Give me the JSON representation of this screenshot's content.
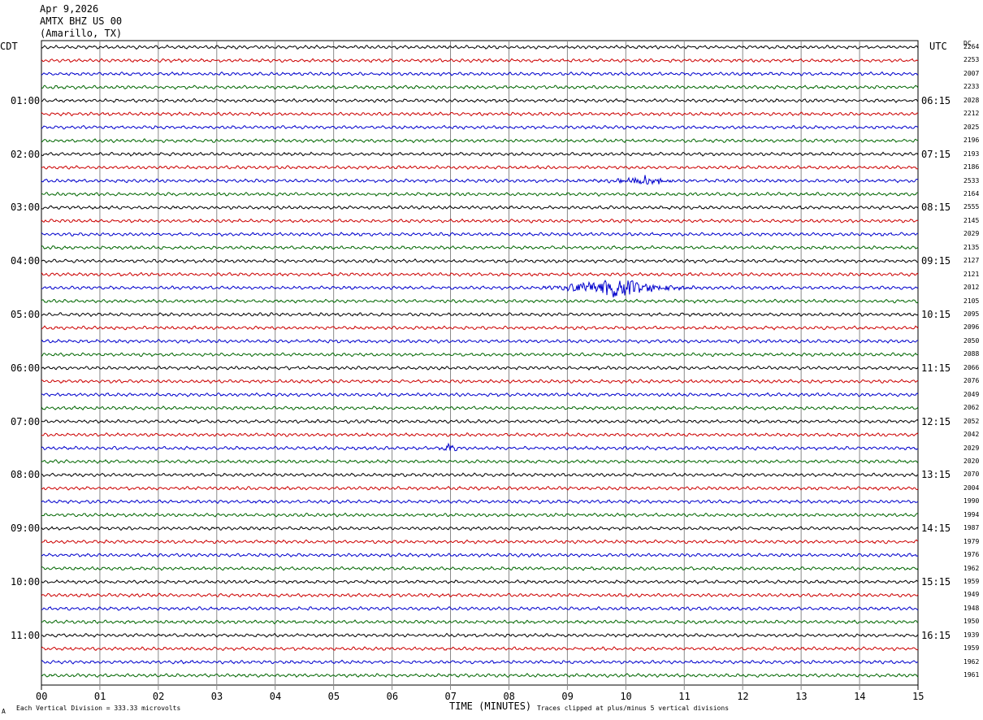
{
  "header": {
    "date": "Apr 9,2026",
    "station": "AMTX BHZ US 00",
    "location": "(Amarillo, TX)"
  },
  "left_zone_label": "CDT",
  "right_zone_label": "UTC",
  "dc_label": "DC",
  "footer": {
    "scale_note": "Each Vertical Division =  333.33 microvolts",
    "xlabel": "TIME (MINUTES)",
    "clip_note": "Traces clipped at plus/minus 5 vertical divisions",
    "corner_mark": "A"
  },
  "chart_data": {
    "type": "line",
    "title": "AMTX BHZ US 00 (Amarillo, TX) Apr 9,2026",
    "xlabel": "TIME (MINUTES)",
    "xlim": [
      0,
      15
    ],
    "x_ticks": [
      "00",
      "01",
      "02",
      "03",
      "04",
      "05",
      "06",
      "07",
      "08",
      "09",
      "10",
      "11",
      "12",
      "13",
      "14",
      "15"
    ],
    "line_colors": [
      "#000000",
      "#cc0000",
      "#0000cc",
      "#006600"
    ],
    "left_hour_labels": [
      "01:00",
      "02:00",
      "03:00",
      "04:00",
      "05:00",
      "06:00",
      "07:00",
      "08:00",
      "09:00",
      "10:00",
      "11:00"
    ],
    "right_hour_labels": [
      "06:15",
      "07:15",
      "08:15",
      "09:15",
      "10:15",
      "11:15",
      "12:15",
      "13:15",
      "14:15",
      "15:15",
      "16:15"
    ],
    "dc_offsets": [
      "2264",
      "2253",
      "2007",
      "2233",
      "2028",
      "2212",
      "2025",
      "2196",
      "2193",
      "2186",
      "2533",
      "2164",
      "2555",
      "2145",
      "2029",
      "2135",
      "2127",
      "2121",
      "2012",
      "2105",
      "2095",
      "2096",
      "2050",
      "2088",
      "2066",
      "2076",
      "2049",
      "2062",
      "2052",
      "2042",
      "2029",
      "2020",
      "2070",
      "2004",
      "1990",
      "1994",
      "1987",
      "1979",
      "1976",
      "1962",
      "1959",
      "1949",
      "1948",
      "1950",
      "1939",
      "1959",
      "1962",
      "1961"
    ],
    "events": [
      {
        "trace": 18,
        "minute_start": 8.6,
        "minute_end": 11.4,
        "peak_minute": 9.8,
        "amplitude": "large"
      },
      {
        "trace": 10,
        "minute_start": 9.2,
        "minute_end": 10.8,
        "peak_minute": 10.3,
        "amplitude": "moderate"
      },
      {
        "trace": 30,
        "minute_start": 6.8,
        "minute_end": 7.2,
        "peak_minute": 7.0,
        "amplitude": "moderate"
      }
    ]
  }
}
